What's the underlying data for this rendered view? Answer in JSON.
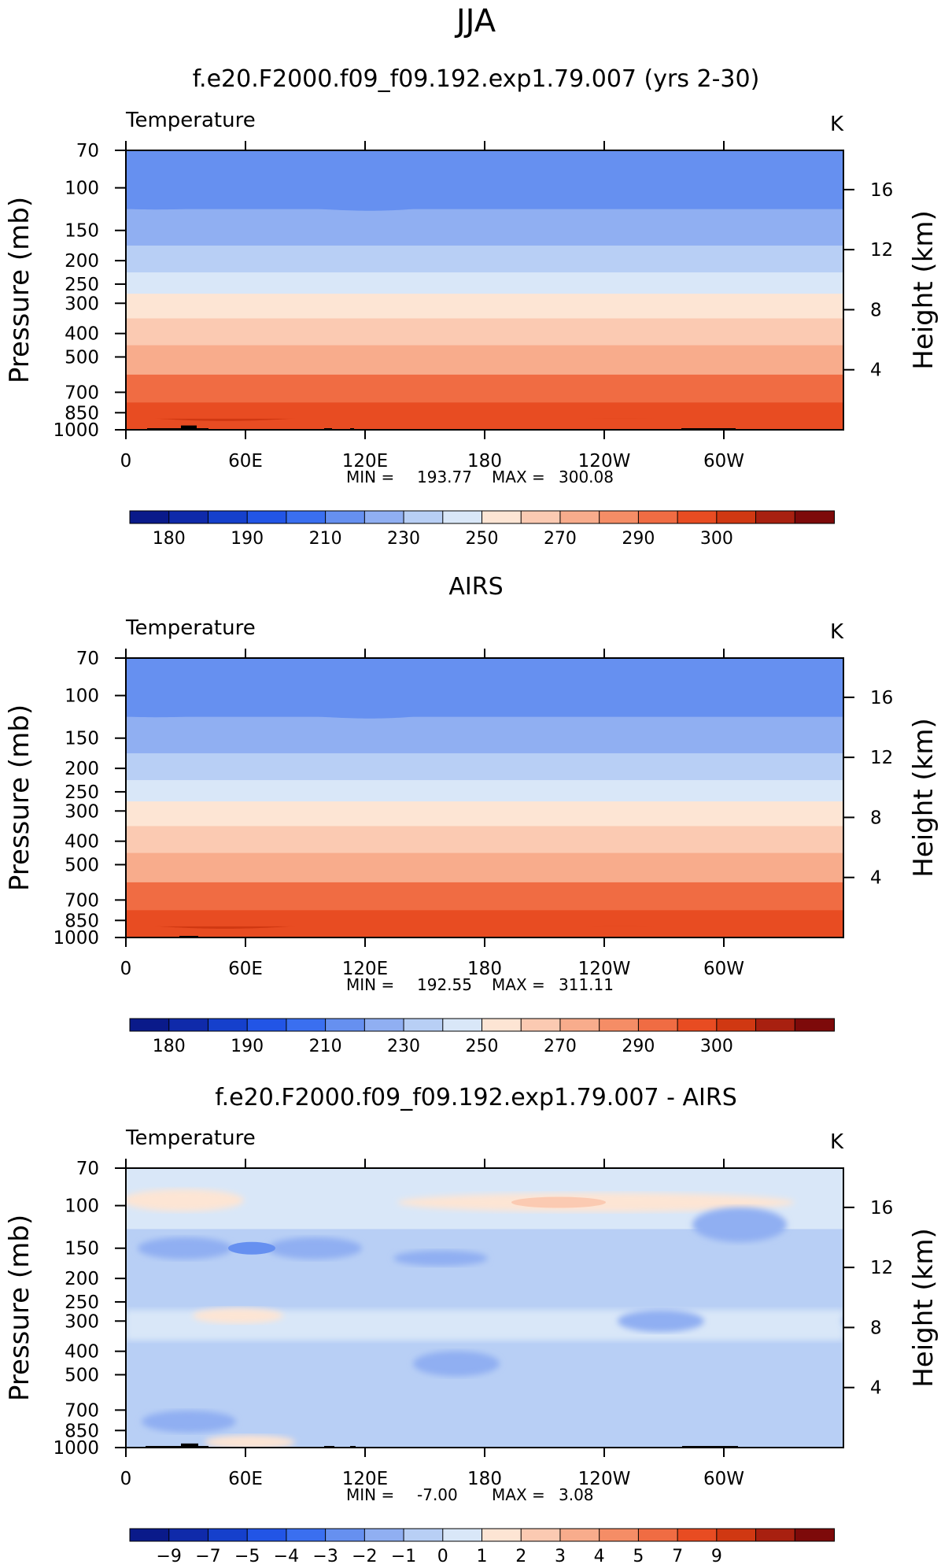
{
  "figure": {
    "season": "JJA"
  },
  "panels": [
    {
      "title": "f.e20.F2000.f09_f09.192.exp1.79.007 (yrs 2-30)",
      "variable": "Temperature",
      "units": "K",
      "stats": {
        "min_label": "MIN",
        "min": "193.77",
        "max_label": "MAX",
        "max": "300.08"
      }
    },
    {
      "title": "AIRS",
      "variable": "Temperature",
      "units": "K",
      "stats": {
        "min_label": "MIN",
        "min": "192.55",
        "max_label": "MAX",
        "max": "311.11"
      }
    },
    {
      "title": "f.e20.F2000.f09_f09.192.exp1.79.007 - AIRS",
      "variable": "Temperature",
      "units": "K",
      "stats": {
        "min_label": "MIN",
        "min": "-7.00",
        "max_label": "MAX",
        "max": "3.08"
      }
    }
  ],
  "axes": {
    "ylabel_left": "Pressure (mb)",
    "ylabel_right": "Height (km)",
    "x_ticks": [
      "0",
      "60E",
      "120E",
      "180",
      "120W",
      "60W"
    ],
    "pressure_ticks": [
      "70",
      "100",
      "150",
      "200",
      "250",
      "300",
      "400",
      "500",
      "700",
      "850",
      "1000"
    ],
    "height_ticks": [
      "16",
      "12",
      "8",
      "4"
    ]
  },
  "colorbars": {
    "absolute": {
      "colors": [
        "#0a1a8a",
        "#0f2aaa",
        "#1540cc",
        "#2255e6",
        "#3a6ff0",
        "#6690f0",
        "#90aff2",
        "#b8cff5",
        "#d9e7f8",
        "#fde5d4",
        "#fbcab2",
        "#f8ac8c",
        "#f58d66",
        "#f06c43",
        "#e84c22",
        "#d03812",
        "#a82010",
        "#7d0a0a"
      ],
      "labels": [
        "180",
        "190",
        "210",
        "230",
        "250",
        "270",
        "290",
        "300"
      ]
    },
    "difference": {
      "colors": [
        "#0a1a8a",
        "#0f2aaa",
        "#1540cc",
        "#2255e6",
        "#3a6ff0",
        "#6690f0",
        "#90aff2",
        "#b8cff5",
        "#d9e7f8",
        "#fde5d4",
        "#fbcab2",
        "#f8ac8c",
        "#f58d66",
        "#f06c43",
        "#e84c22",
        "#d03812",
        "#a82010",
        "#7d0a0a"
      ],
      "labels": [
        "−9",
        "−7",
        "−5",
        "−4",
        "−3",
        "−2",
        "−1",
        "0",
        "1",
        "2",
        "3",
        "4",
        "5",
        "7",
        "9"
      ]
    }
  },
  "chart_data": [
    {
      "type": "heatmap",
      "title": "f.e20.F2000.f09_f09.192.exp1.79.007 (yrs 2-30)",
      "variable": "Temperature",
      "units": "K",
      "x_categories": [
        "0",
        "60E",
        "120E",
        "180",
        "120W",
        "60W"
      ],
      "pressure_levels_mb": [
        70,
        100,
        150,
        200,
        250,
        300,
        400,
        500,
        700,
        850,
        1000
      ],
      "height_km": [
        16,
        12,
        8,
        4
      ],
      "temperature_by_level_K": [
        [
          80,
          200
        ],
        [
          100,
          205
        ],
        [
          150,
          212
        ],
        [
          200,
          222
        ],
        [
          250,
          232
        ],
        [
          300,
          242
        ],
        [
          400,
          255
        ],
        [
          500,
          265
        ],
        [
          700,
          280
        ],
        [
          850,
          290
        ],
        [
          1000,
          298
        ]
      ],
      "min": 193.77,
      "max": 300.08,
      "colorbar_levels": [
        180,
        190,
        210,
        230,
        250,
        270,
        290,
        300
      ]
    },
    {
      "type": "heatmap",
      "title": "AIRS",
      "variable": "Temperature",
      "units": "K",
      "x_categories": [
        "0",
        "60E",
        "120E",
        "180",
        "120W",
        "60W"
      ],
      "pressure_levels_mb": [
        70,
        100,
        150,
        200,
        250,
        300,
        400,
        500,
        700,
        850,
        1000
      ],
      "height_km": [
        16,
        12,
        8,
        4
      ],
      "temperature_by_level_K": [
        [
          80,
          200
        ],
        [
          100,
          204
        ],
        [
          150,
          212
        ],
        [
          200,
          222
        ],
        [
          250,
          232
        ],
        [
          300,
          242
        ],
        [
          400,
          255
        ],
        [
          500,
          265
        ],
        [
          700,
          280
        ],
        [
          850,
          292
        ],
        [
          1000,
          300
        ]
      ],
      "min": 192.55,
      "max": 311.11,
      "colorbar_levels": [
        180,
        190,
        210,
        230,
        250,
        270,
        290,
        300
      ]
    },
    {
      "type": "heatmap",
      "title": "f.e20.F2000.f09_f09.192.exp1.79.007 - AIRS",
      "variable": "Temperature",
      "units": "K",
      "x_categories": [
        "0",
        "60E",
        "120E",
        "180",
        "120W",
        "60W"
      ],
      "pressure_levels_mb": [
        70,
        100,
        150,
        200,
        250,
        300,
        400,
        500,
        700,
        850,
        1000
      ],
      "height_km": [
        16,
        12,
        8,
        4
      ],
      "typical_difference_K": -1.5,
      "min": -7.0,
      "max": 3.08,
      "colorbar_levels": [
        -9,
        -7,
        -5,
        -4,
        -3,
        -2,
        -1,
        0,
        1,
        2,
        3,
        4,
        5,
        7,
        9
      ]
    }
  ]
}
